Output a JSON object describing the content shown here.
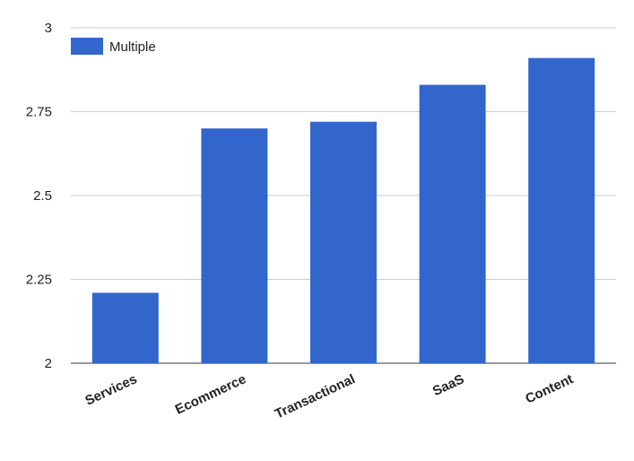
{
  "chart_data": {
    "type": "bar",
    "categories": [
      "Services",
      "Ecommerce",
      "Transactional",
      "SaaS",
      "Content"
    ],
    "series": [
      {
        "name": "Multiple",
        "values": [
          2.21,
          2.7,
          2.72,
          2.83,
          2.91
        ]
      }
    ],
    "ylim": [
      2,
      3
    ],
    "yticks": [
      "2",
      "2.25",
      "2.5",
      "2.75",
      "3"
    ],
    "grid": true,
    "legend": "top-left",
    "colors": {
      "bar": "#3366cc",
      "grid": "#cccccc",
      "text": "#222222"
    }
  }
}
